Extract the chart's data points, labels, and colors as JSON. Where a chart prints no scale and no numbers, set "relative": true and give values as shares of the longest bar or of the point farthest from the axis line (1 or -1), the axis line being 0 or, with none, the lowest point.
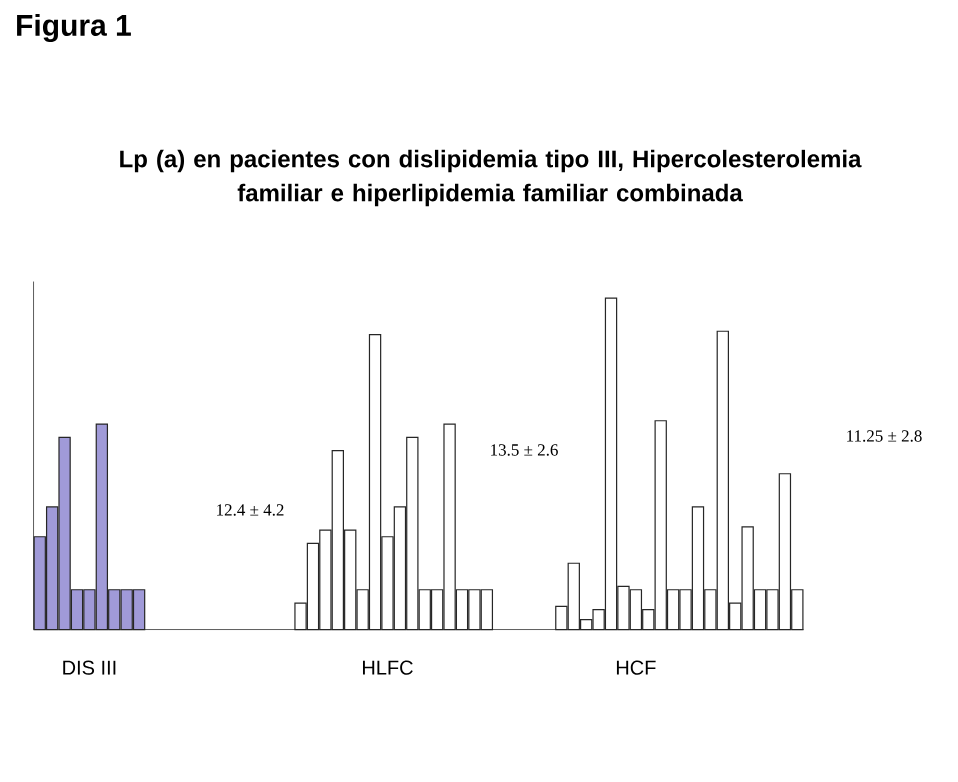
{
  "chart_data": {
    "type": "bar",
    "title": "Figura 1",
    "subtitle": "Lp (a) en pacientes con dislipidemia tipo III, Hipercolesterolemia familiar e hiperlipidemia familiar combinada",
    "relative": true,
    "categories": [
      null,
      null,
      null,
      null,
      "DIS III",
      null,
      null,
      null,
      null,
      null,
      null,
      null,
      null,
      null,
      null,
      null,
      null,
      null,
      null,
      null,
      null,
      null,
      null,
      null,
      null,
      null,
      null,
      null,
      "HLFC",
      null,
      null,
      null,
      null,
      null,
      null,
      null,
      null,
      null,
      null,
      null,
      null,
      null,
      null,
      null,
      null,
      null,
      null,
      null,
      "HCF",
      null,
      null,
      null,
      null,
      null,
      null,
      null,
      null,
      null,
      null,
      null,
      null,
      null
    ],
    "values": [
      0.28,
      0.37,
      0.58,
      0.12,
      0.12,
      0.62,
      0.12,
      0.12,
      0.12,
      null,
      null,
      null,
      null,
      null,
      null,
      null,
      null,
      null,
      null,
      null,
      null,
      0.08,
      0.26,
      0.3,
      0.54,
      0.3,
      0.12,
      0.89,
      0.28,
      0.37,
      0.58,
      0.12,
      0.12,
      0.62,
      0.12,
      0.12,
      0.12,
      null,
      null,
      null,
      null,
      null,
      0.07,
      0.2,
      0.03,
      0.06,
      1,
      0.13,
      0.12,
      0.06,
      0.63,
      0.12,
      0.12,
      0.37,
      0.12,
      0.9,
      0.08,
      0.31,
      0.12,
      0.12,
      0.47,
      0.12
    ],
    "colors": [
      "#a09ad8",
      "#a09ad8",
      "#a09ad8",
      "#a09ad8",
      "#a09ad8",
      "#a09ad8",
      "#a09ad8",
      "#a09ad8",
      "#a09ad8",
      "#ffffff",
      "#ffffff",
      "#ffffff",
      "#ffffff",
      "#ffffff",
      "#ffffff",
      "#ffffff",
      "#ffffff",
      "#ffffff",
      "#ffffff",
      "#ffffff",
      "#ffffff",
      "#ffffff",
      "#ffffff",
      "#ffffff",
      "#ffffff",
      "#ffffff",
      "#ffffff",
      "#ffffff",
      "#ffffff",
      "#ffffff",
      "#ffffff",
      "#ffffff",
      "#ffffff",
      "#ffffff",
      "#ffffff",
      "#ffffff",
      "#ffffff",
      "#ffffff",
      "#ffffff",
      "#ffffff",
      "#ffffff",
      "#ffffff",
      "#ffffff",
      "#ffffff",
      "#ffffff",
      "#ffffff",
      "#ffffff",
      "#ffffff",
      "#ffffff",
      "#ffffff",
      "#ffffff",
      "#ffffff",
      "#ffffff",
      "#ffffff",
      "#ffffff",
      "#ffffff",
      "#ffffff",
      "#ffffff",
      "#ffffff",
      "#ffffff",
      "#ffffff",
      "#ffffff"
    ],
    "annotations": [
      "12.4 ± 4.2",
      "13.5 ± 2.6",
      "11.25 ± 2.8"
    ]
  }
}
